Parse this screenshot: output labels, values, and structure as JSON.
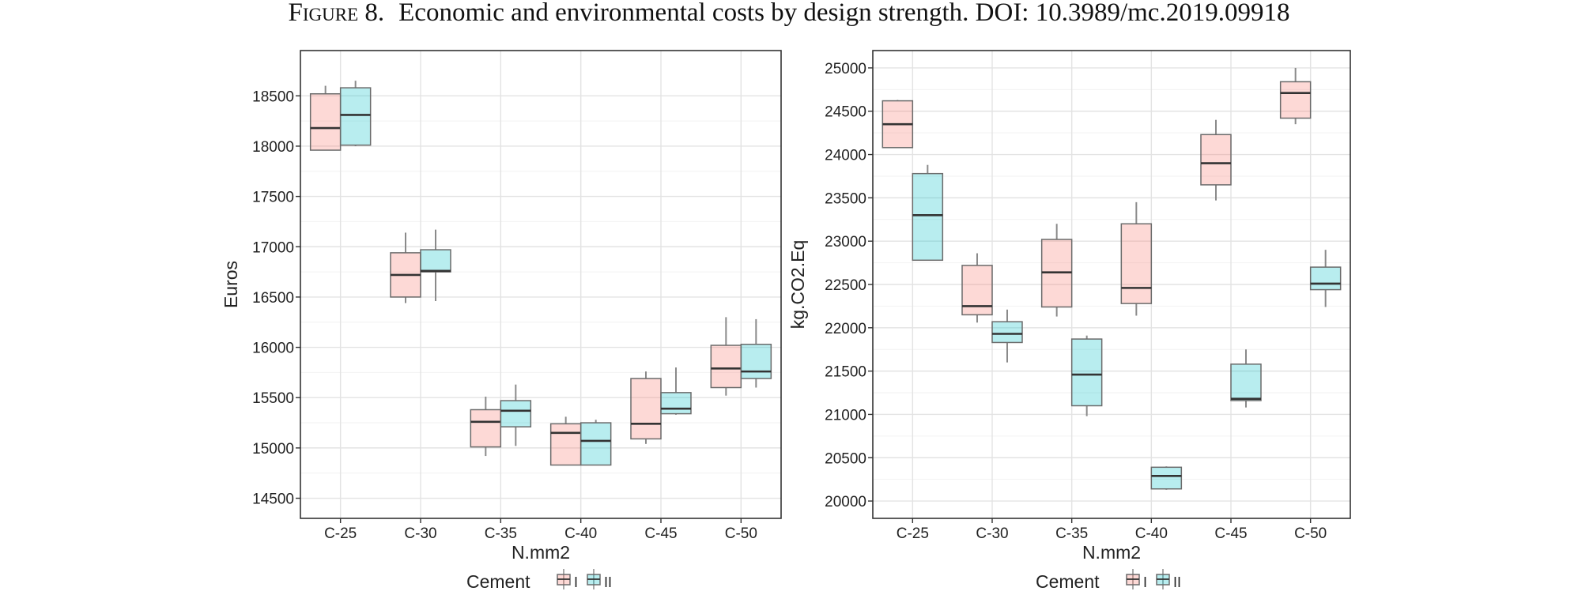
{
  "caption": {
    "label": "Figure 8.",
    "text": "Economic and environmental costs by design strength. DOI: 10.3989/mc.2019.09918"
  },
  "colors": {
    "type_I": "#f8766d",
    "type_II": "#00bfc4",
    "panel_border": "#333333",
    "grid": "#ebebeb"
  },
  "legend_text": {
    "title": "Cement",
    "type_I": "I",
    "type_II": "II"
  },
  "chart_data": [
    {
      "type": "boxplot",
      "title": "",
      "xlabel": "N.mm2",
      "ylabel": "Euros",
      "categories": [
        "C-25",
        "C-30",
        "C-35",
        "C-40",
        "C-45",
        "C-50"
      ],
      "ylim": [
        14300,
        18950
      ],
      "yticks": [
        14500,
        15000,
        15500,
        16000,
        16500,
        17000,
        17500,
        18000,
        18500
      ],
      "grid": true,
      "legend": {
        "title": "Cement",
        "position": "bottom",
        "entries": [
          "I",
          "II"
        ]
      },
      "series": [
        {
          "name": "I",
          "boxes": [
            {
              "min": 17960,
              "q1": 17960,
              "median": 18180,
              "q3": 18520,
              "max": 18600
            },
            {
              "min": 16440,
              "q1": 16500,
              "median": 16720,
              "q3": 16940,
              "max": 17140
            },
            {
              "min": 14920,
              "q1": 15010,
              "median": 15260,
              "q3": 15380,
              "max": 15510
            },
            {
              "min": 14830,
              "q1": 14830,
              "median": 15150,
              "q3": 15240,
              "max": 15310
            },
            {
              "min": 15040,
              "q1": 15090,
              "median": 15240,
              "q3": 15690,
              "max": 15760
            },
            {
              "min": 15520,
              "q1": 15600,
              "median": 15790,
              "q3": 16020,
              "max": 16300
            }
          ]
        },
        {
          "name": "II",
          "boxes": [
            {
              "min": 18000,
              "q1": 18010,
              "median": 18310,
              "q3": 18580,
              "max": 18650
            },
            {
              "min": 16460,
              "q1": 16750,
              "median": 16760,
              "q3": 16970,
              "max": 17170
            },
            {
              "min": 15020,
              "q1": 15210,
              "median": 15370,
              "q3": 15470,
              "max": 15630
            },
            {
              "min": 14830,
              "q1": 14830,
              "median": 15070,
              "q3": 15250,
              "max": 15280
            },
            {
              "min": 15330,
              "q1": 15340,
              "median": 15390,
              "q3": 15550,
              "max": 15800
            },
            {
              "min": 15600,
              "q1": 15690,
              "median": 15760,
              "q3": 16030,
              "max": 16280
            }
          ]
        }
      ]
    },
    {
      "type": "boxplot",
      "title": "",
      "xlabel": "N.mm2",
      "ylabel": "kg.CO2.Eq",
      "categories": [
        "C-25",
        "C-30",
        "C-35",
        "C-40",
        "C-45",
        "C-50"
      ],
      "ylim": [
        19800,
        25200
      ],
      "yticks": [
        20000,
        20500,
        21000,
        21500,
        22000,
        22500,
        23000,
        23500,
        24000,
        24500,
        25000
      ],
      "grid": true,
      "legend": {
        "title": "Cement",
        "position": "bottom",
        "entries": [
          "I",
          "II"
        ]
      },
      "series": [
        {
          "name": "I",
          "boxes": [
            {
              "min": 24080,
              "q1": 24080,
              "median": 24350,
              "q3": 24620,
              "max": 24630
            },
            {
              "min": 22060,
              "q1": 22150,
              "median": 22250,
              "q3": 22720,
              "max": 22860
            },
            {
              "min": 22130,
              "q1": 22240,
              "median": 22640,
              "q3": 23020,
              "max": 23200
            },
            {
              "min": 22140,
              "q1": 22280,
              "median": 22460,
              "q3": 23200,
              "max": 23450
            },
            {
              "min": 23470,
              "q1": 23650,
              "median": 23900,
              "q3": 24230,
              "max": 24400
            },
            {
              "min": 24350,
              "q1": 24420,
              "median": 24710,
              "q3": 24840,
              "max": 25000
            }
          ]
        },
        {
          "name": "II",
          "boxes": [
            {
              "min": 22780,
              "q1": 22780,
              "median": 23300,
              "q3": 23780,
              "max": 23880
            },
            {
              "min": 21600,
              "q1": 21830,
              "median": 21930,
              "q3": 22070,
              "max": 22210
            },
            {
              "min": 20980,
              "q1": 21100,
              "median": 21460,
              "q3": 21870,
              "max": 21910
            },
            {
              "min": 20130,
              "q1": 20140,
              "median": 20290,
              "q3": 20390,
              "max": 20400
            },
            {
              "min": 21080,
              "q1": 21160,
              "median": 21180,
              "q3": 21580,
              "max": 21750
            },
            {
              "min": 22240,
              "q1": 22440,
              "median": 22510,
              "q3": 22700,
              "max": 22900
            }
          ]
        }
      ]
    }
  ]
}
